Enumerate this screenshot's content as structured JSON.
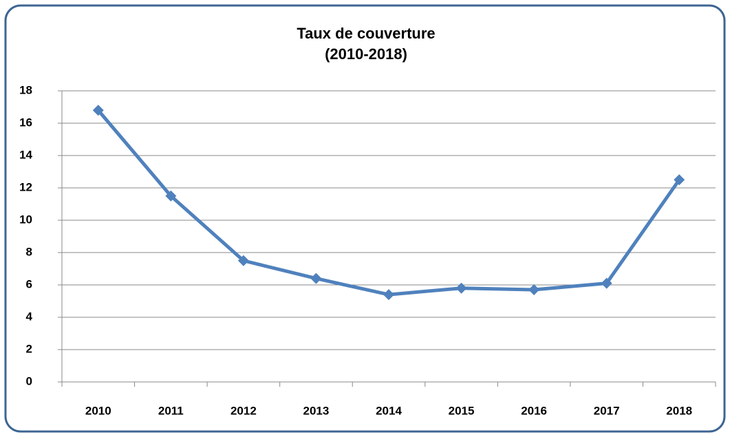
{
  "chart_data": {
    "type": "line",
    "title": "Taux de couverture",
    "subtitle": "(2010-2018)",
    "categories": [
      "2010",
      "2011",
      "2012",
      "2013",
      "2014",
      "2015",
      "2016",
      "2017",
      "2018"
    ],
    "series": [
      {
        "name": "Taux de couverture",
        "color": "#4f81bd",
        "values": [
          16.8,
          11.5,
          7.5,
          6.4,
          5.4,
          5.8,
          5.7,
          6.1,
          12.5
        ]
      }
    ],
    "ylim": [
      0,
      18
    ],
    "yticks": [
      0,
      2,
      4,
      6,
      8,
      10,
      12,
      14,
      16,
      18
    ],
    "grid": true,
    "legend": false
  }
}
